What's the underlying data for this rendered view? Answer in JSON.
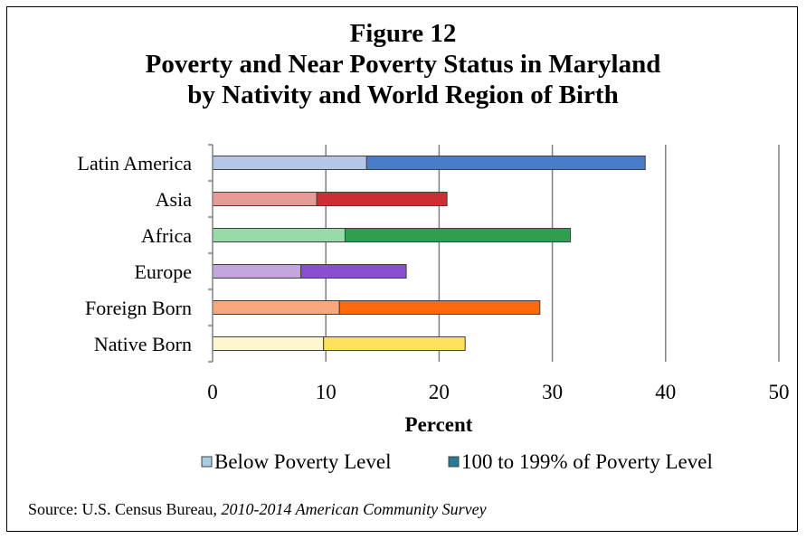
{
  "figure_label": "Figure 12",
  "source": {
    "prefix": "Source:  U.S. Census Bureau, ",
    "survey": "2010-2014 American Community Survey"
  },
  "colors": {
    "gridline": "#808080",
    "axis": "#808080",
    "legend_below": "#a9cde0",
    "legend_near": "#2b7a93"
  },
  "chart_data": {
    "type": "bar",
    "orientation": "horizontal",
    "stacked": true,
    "title_lines": [
      "Poverty and Near Poverty Status in Maryland",
      "by Nativity and World Region of Birth"
    ],
    "categories": [
      "Latin America",
      "Asia",
      "Africa",
      "Europe",
      "Foreign Born",
      "Native Born"
    ],
    "series": [
      {
        "name": "Below Poverty Level",
        "values": [
          13.6,
          9.2,
          11.7,
          7.8,
          11.2,
          9.8
        ],
        "colors": [
          "#b4c7e7",
          "#e89a96",
          "#98dba9",
          "#c3a6e0",
          "#f9a87e",
          "#fff6d0"
        ]
      },
      {
        "name": "100 to 199% of Poverty Level",
        "values": [
          24.6,
          11.5,
          19.9,
          9.3,
          17.7,
          12.5
        ],
        "colors": [
          "#4a7cc9",
          "#cc2e33",
          "#2f9e50",
          "#8a4fcf",
          "#ff6a0f",
          "#ffe15c"
        ]
      }
    ],
    "xlabel": "Percent",
    "xlim": [
      0,
      50
    ],
    "xticks": [
      0,
      10,
      20,
      30,
      40,
      50
    ],
    "grid": "vertical",
    "legend_position": "bottom"
  }
}
